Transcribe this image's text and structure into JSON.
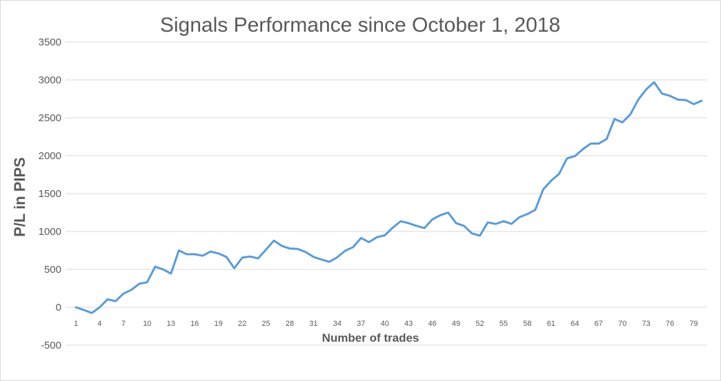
{
  "chart_data": {
    "type": "line",
    "title": "Signals Performance since October 1, 2018",
    "xlabel": "Number of trades",
    "ylabel": "P/L in PIPS",
    "ylim": [
      -500,
      3500
    ],
    "y_ticks": [
      3500,
      3000,
      2500,
      2000,
      1500,
      1000,
      500,
      0,
      -500
    ],
    "x_range": [
      1,
      80
    ],
    "x_tick_labels": [
      "1",
      "4",
      "7",
      "10",
      "13",
      "16",
      "19",
      "22",
      "25",
      "28",
      "31",
      "34",
      "37",
      "40",
      "43",
      "46",
      "49",
      "52",
      "55",
      "58",
      "61",
      "64",
      "67",
      "70",
      "73",
      "76",
      "79"
    ],
    "grid": "horizontal",
    "color": "#5b9bd5",
    "series": [
      {
        "x": [
          1,
          2,
          3,
          4,
          5,
          6,
          7,
          8,
          9,
          10,
          11,
          12,
          13,
          14,
          15,
          16,
          17,
          18,
          19,
          20,
          21,
          22,
          23,
          24,
          25,
          26,
          27,
          28,
          29,
          30,
          31,
          32,
          33,
          34,
          35,
          36,
          37,
          38,
          39,
          40,
          41,
          42,
          43,
          44,
          45,
          46,
          47,
          48,
          49,
          50,
          51,
          52,
          53,
          54,
          55,
          56,
          57,
          58,
          59,
          60,
          61,
          62,
          63,
          64,
          65,
          66,
          67,
          68,
          69,
          70,
          71,
          72,
          73,
          74,
          75,
          76,
          77,
          78,
          79,
          80
        ],
        "values": [
          0,
          -35,
          -75,
          0,
          105,
          80,
          180,
          230,
          310,
          330,
          535,
          500,
          445,
          750,
          700,
          700,
          680,
          735,
          710,
          665,
          515,
          655,
          670,
          645,
          760,
          880,
          810,
          775,
          770,
          730,
          665,
          630,
          600,
          660,
          745,
          795,
          915,
          860,
          925,
          950,
          1050,
          1135,
          1110,
          1075,
          1045,
          1160,
          1215,
          1250,
          1110,
          1075,
          975,
          945,
          1120,
          1100,
          1135,
          1100,
          1190,
          1230,
          1285,
          1555,
          1670,
          1760,
          1965,
          1995,
          2085,
          2160,
          2160,
          2220,
          2485,
          2440,
          2545,
          2740,
          2875,
          2970,
          2820,
          2790,
          2740,
          2735,
          2680,
          2725
        ]
      }
    ]
  }
}
